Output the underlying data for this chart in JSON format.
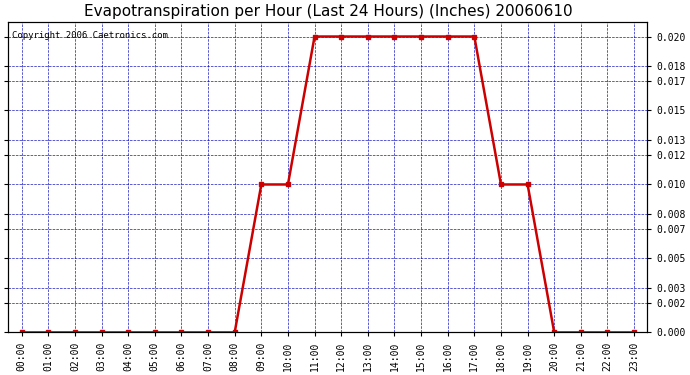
{
  "title": "Evapotranspiration per Hour (Last 24 Hours) (Inches) 20060610",
  "copyright_text": "Copyright 2006 Caetronics.com",
  "hours": [
    0,
    1,
    2,
    3,
    4,
    5,
    6,
    7,
    8,
    9,
    10,
    11,
    12,
    13,
    14,
    15,
    16,
    17,
    18,
    19,
    20,
    21,
    22,
    23
  ],
  "values": [
    0.0,
    0.0,
    0.0,
    0.0,
    0.0,
    0.0,
    0.0,
    0.0,
    0.0,
    0.01,
    0.01,
    0.02,
    0.02,
    0.02,
    0.02,
    0.02,
    0.02,
    0.02,
    0.01,
    0.01,
    0.0,
    0.0,
    0.0,
    0.0
  ],
  "xlabels": [
    "00:00",
    "01:00",
    "02:00",
    "03:00",
    "04:00",
    "05:00",
    "06:00",
    "07:00",
    "08:00",
    "09:00",
    "10:00",
    "11:00",
    "12:00",
    "13:00",
    "14:00",
    "15:00",
    "16:00",
    "17:00",
    "18:00",
    "19:00",
    "20:00",
    "21:00",
    "22:00",
    "23:00"
  ],
  "ylim": [
    0,
    0.021
  ],
  "yticks": [
    0.0,
    0.002,
    0.003,
    0.005,
    0.007,
    0.008,
    0.01,
    0.012,
    0.013,
    0.015,
    0.017,
    0.018,
    0.02
  ],
  "line_color": "#cc0000",
  "marker_color": "#cc0000",
  "grid_color": "#0000bb",
  "bg_color": "#ffffff",
  "plot_bg_color": "#ffffff",
  "title_fontsize": 11,
  "copyright_fontsize": 6.5,
  "tick_fontsize": 7,
  "marker_size": 3,
  "line_width": 1.8
}
